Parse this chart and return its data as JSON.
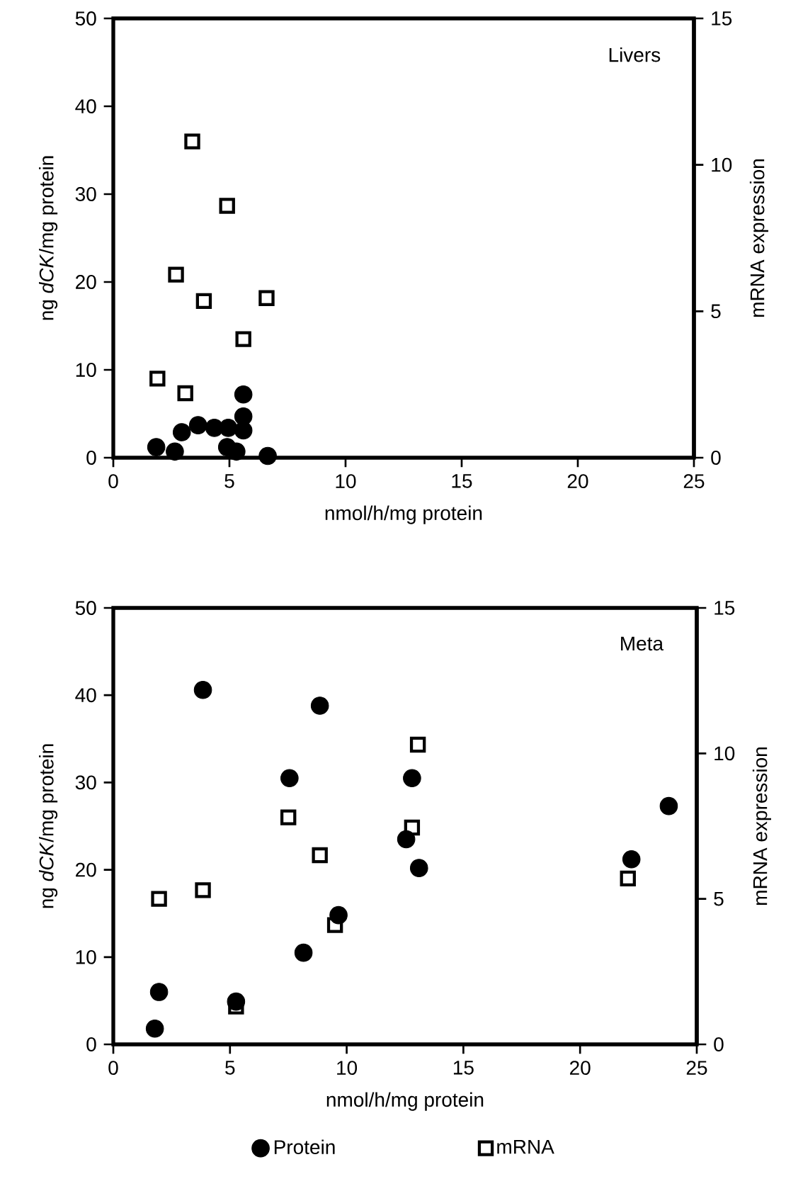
{
  "chart_data": [
    {
      "type": "scatter",
      "xlabel": "nmol/h/mg protein",
      "ylabel": "ng *dCK*/mg protein",
      "y2label": "mRNA expression",
      "annotations": [
        "Livers"
      ],
      "xlim": [
        0,
        25
      ],
      "ylim": [
        0,
        50
      ],
      "y2lim": [
        0,
        15
      ],
      "xticks": [
        0,
        5,
        10,
        15,
        20,
        25
      ],
      "yticks": [
        0,
        10,
        20,
        30,
        40,
        50
      ],
      "y2ticks": [
        0,
        5,
        10,
        15
      ],
      "series": [
        {
          "color": "#000000",
          "marker": "circle",
          "x": [
            5.6,
            6.65,
            1.85,
            2.65,
            2.95,
            3.65,
            4.35,
            4.9,
            5.3,
            5.6,
            5.6,
            4.95
          ],
          "values": [
            7.2,
            0.2,
            1.2,
            0.7,
            2.9,
            3.7,
            3.4,
            1.2,
            0.7,
            4.7,
            3.1,
            3.4
          ]
        },
        {
          "color": "#000000",
          "marker": "square",
          "axis": "y2",
          "x": [
            3.4,
            4.9,
            2.7,
            3.9,
            6.6,
            5.6,
            1.9,
            3.1
          ],
          "values": [
            10.8,
            8.6,
            6.25,
            5.35,
            5.45,
            4.05,
            2.7,
            2.2
          ]
        }
      ]
    },
    {
      "type": "scatter",
      "xlabel": "nmol/h/mg protein",
      "ylabel": "ng *dCK*/mg protein",
      "y2label": "mRNA expression",
      "annotations": [
        "Meta"
      ],
      "xlim": [
        0,
        25
      ],
      "ylim": [
        0,
        50
      ],
      "y2lim": [
        0,
        15
      ],
      "xticks": [
        0,
        5,
        10,
        15,
        20,
        25
      ],
      "yticks": [
        0,
        10,
        20,
        30,
        40,
        50
      ],
      "y2ticks": [
        0,
        5,
        10,
        15
      ],
      "legend": "bottom",
      "series": [
        {
          "name": "Protein",
          "color": "#000000",
          "marker": "circle",
          "x": [
            3.84,
            8.85,
            7.55,
            12.8,
            23.8,
            12.55,
            13.1,
            22.2,
            9.65,
            8.15,
            1.96,
            5.26,
            1.78
          ],
          "values": [
            40.6,
            38.8,
            30.5,
            30.5,
            27.3,
            23.5,
            20.2,
            21.2,
            14.8,
            10.5,
            6.0,
            4.9,
            1.8
          ]
        },
        {
          "name": "mRNA",
          "color": "#000000",
          "marker": "square",
          "axis": "y2",
          "x": [
            13.05,
            7.5,
            8.85,
            12.8,
            1.96,
            3.84,
            22.05,
            9.5,
            5.26
          ],
          "values": [
            10.3,
            7.8,
            6.5,
            7.45,
            5.0,
            5.3,
            5.7,
            4.1,
            1.3
          ]
        }
      ]
    }
  ]
}
